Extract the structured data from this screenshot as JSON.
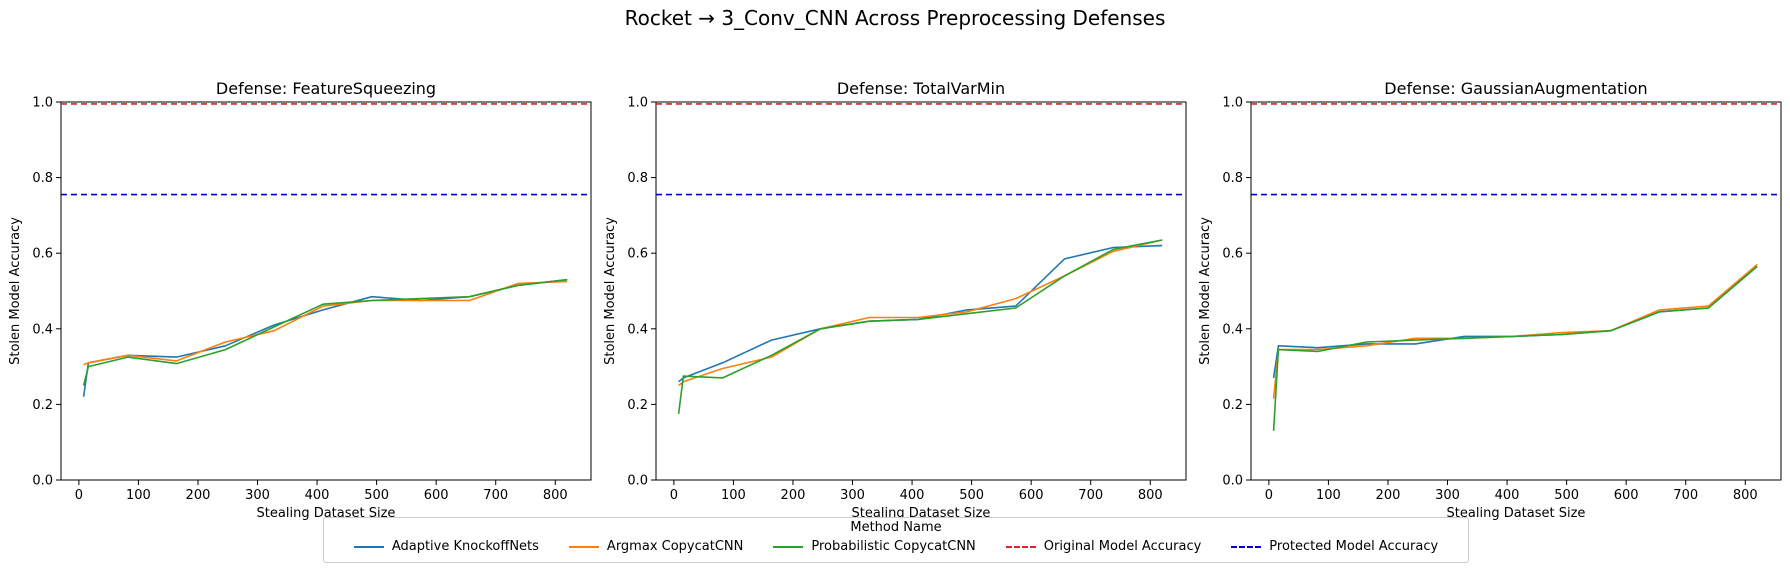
{
  "figure": {
    "suptitle": "Rocket → 3_Conv_CNN Across Preprocessing Defenses"
  },
  "legend": {
    "title": "Method Name",
    "items": [
      {
        "label": "Adaptive KnockoffNets",
        "color": "#1f77b4",
        "style": "solid"
      },
      {
        "label": "Argmax CopycatCNN",
        "color": "#ff7f0e",
        "style": "solid"
      },
      {
        "label": "Probabilistic CopycatCNN",
        "color": "#2ca02c",
        "style": "solid"
      },
      {
        "label": "Original Model Accuracy",
        "color": "#d62728",
        "style": "dashed"
      },
      {
        "label": "Protected Model Accuracy",
        "color": "#0000cc",
        "style": "dashed"
      }
    ]
  },
  "chart_data": [
    {
      "type": "line",
      "title": "Defense: FeatureSqueezing",
      "xlabel": "Stealing Dataset Size",
      "ylabel": "Stolen Model Accuracy",
      "xlim": [
        -30,
        860
      ],
      "ylim": [
        0.0,
        1.0
      ],
      "xticks": [
        0,
        100,
        200,
        300,
        400,
        500,
        600,
        700,
        800
      ],
      "yticks": [
        0.0,
        0.2,
        0.4,
        0.6,
        0.8,
        1.0
      ],
      "grid": false,
      "legend": "bottom-center",
      "hlines": [
        {
          "name": "Original Model Accuracy",
          "y": 0.995,
          "color": "#d62728"
        },
        {
          "name": "Protected Model Accuracy",
          "y": 0.755,
          "color": "#0000cc"
        }
      ],
      "series": [
        {
          "name": "Adaptive KnockoffNets",
          "color": "#1f77b4",
          "x": [
            8,
            16,
            82,
            164,
            246,
            328,
            410,
            492,
            574,
            656,
            738,
            820
          ],
          "y": [
            0.22,
            0.31,
            0.33,
            0.325,
            0.355,
            0.41,
            0.45,
            0.485,
            0.475,
            0.485,
            0.515,
            0.53
          ]
        },
        {
          "name": "Argmax CopycatCNN",
          "color": "#ff7f0e",
          "x": [
            8,
            16,
            82,
            164,
            246,
            328,
            410,
            492,
            574,
            656,
            738,
            820
          ],
          "y": [
            0.305,
            0.31,
            0.33,
            0.315,
            0.365,
            0.395,
            0.46,
            0.475,
            0.475,
            0.475,
            0.52,
            0.525
          ]
        },
        {
          "name": "Probabilistic CopycatCNN",
          "color": "#2ca02c",
          "x": [
            8,
            16,
            82,
            164,
            246,
            328,
            410,
            492,
            574,
            656,
            738,
            820
          ],
          "y": [
            0.25,
            0.3,
            0.325,
            0.308,
            0.345,
            0.405,
            0.465,
            0.475,
            0.48,
            0.485,
            0.515,
            0.53
          ]
        }
      ]
    },
    {
      "type": "line",
      "title": "Defense: TotalVarMin",
      "xlabel": "Stealing Dataset Size",
      "ylabel": "Stolen Model Accuracy",
      "xlim": [
        -30,
        860
      ],
      "ylim": [
        0.0,
        1.0
      ],
      "xticks": [
        0,
        100,
        200,
        300,
        400,
        500,
        600,
        700,
        800
      ],
      "yticks": [
        0.0,
        0.2,
        0.4,
        0.6,
        0.8,
        1.0
      ],
      "grid": false,
      "legend": "bottom-center",
      "hlines": [
        {
          "name": "Original Model Accuracy",
          "y": 0.995,
          "color": "#d62728"
        },
        {
          "name": "Protected Model Accuracy",
          "y": 0.755,
          "color": "#0000cc"
        }
      ],
      "series": [
        {
          "name": "Adaptive KnockoffNets",
          "color": "#1f77b4",
          "x": [
            8,
            16,
            82,
            164,
            246,
            328,
            410,
            492,
            574,
            656,
            738,
            820
          ],
          "y": [
            0.26,
            0.27,
            0.31,
            0.37,
            0.4,
            0.42,
            0.425,
            0.45,
            0.46,
            0.585,
            0.615,
            0.62
          ]
        },
        {
          "name": "Argmax CopycatCNN",
          "color": "#ff7f0e",
          "x": [
            8,
            16,
            82,
            164,
            246,
            328,
            410,
            492,
            574,
            656,
            738,
            820
          ],
          "y": [
            0.25,
            0.26,
            0.295,
            0.325,
            0.4,
            0.43,
            0.43,
            0.445,
            0.48,
            0.54,
            0.605,
            0.635
          ]
        },
        {
          "name": "Probabilistic CopycatCNN",
          "color": "#2ca02c",
          "x": [
            8,
            16,
            82,
            164,
            246,
            328,
            410,
            492,
            574,
            656,
            738,
            820
          ],
          "y": [
            0.175,
            0.275,
            0.27,
            0.33,
            0.4,
            0.42,
            0.425,
            0.44,
            0.455,
            0.54,
            0.61,
            0.635
          ]
        }
      ]
    },
    {
      "type": "line",
      "title": "Defense: GaussianAugmentation",
      "xlabel": "Stealing Dataset Size",
      "ylabel": "Stolen Model Accuracy",
      "xlim": [
        -30,
        860
      ],
      "ylim": [
        0.0,
        1.0
      ],
      "xticks": [
        0,
        100,
        200,
        300,
        400,
        500,
        600,
        700,
        800
      ],
      "yticks": [
        0.0,
        0.2,
        0.4,
        0.6,
        0.8,
        1.0
      ],
      "grid": false,
      "legend": "bottom-center",
      "hlines": [
        {
          "name": "Original Model Accuracy",
          "y": 0.995,
          "color": "#d62728"
        },
        {
          "name": "Protected Model Accuracy",
          "y": 0.755,
          "color": "#0000cc"
        }
      ],
      "series": [
        {
          "name": "Adaptive KnockoffNets",
          "color": "#1f77b4",
          "x": [
            8,
            16,
            82,
            164,
            246,
            328,
            410,
            492,
            574,
            656,
            738,
            820
          ],
          "y": [
            0.27,
            0.355,
            0.35,
            0.36,
            0.36,
            0.38,
            0.38,
            0.385,
            0.395,
            0.445,
            0.455,
            0.565
          ]
        },
        {
          "name": "Argmax CopycatCNN",
          "color": "#ff7f0e",
          "x": [
            8,
            16,
            82,
            164,
            246,
            328,
            410,
            492,
            574,
            656,
            738,
            820
          ],
          "y": [
            0.215,
            0.345,
            0.345,
            0.355,
            0.375,
            0.375,
            0.38,
            0.39,
            0.395,
            0.45,
            0.46,
            0.57
          ]
        },
        {
          "name": "Probabilistic CopycatCNN",
          "color": "#2ca02c",
          "x": [
            8,
            16,
            82,
            164,
            246,
            328,
            410,
            492,
            574,
            656,
            738,
            820
          ],
          "y": [
            0.13,
            0.345,
            0.34,
            0.365,
            0.37,
            0.375,
            0.38,
            0.385,
            0.395,
            0.445,
            0.455,
            0.565
          ]
        }
      ]
    }
  ]
}
